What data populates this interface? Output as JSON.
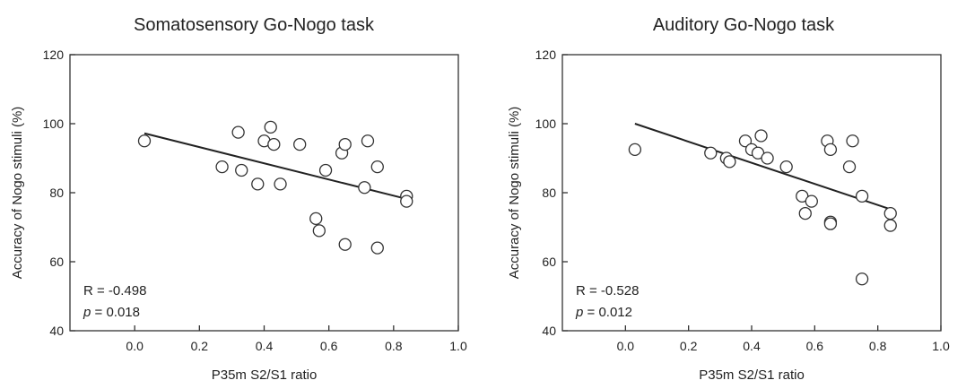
{
  "chart_data": [
    {
      "type": "scatter",
      "title": "Somatosensory Go-Nogo task",
      "xlabel": "P35m S2/S1 ratio",
      "ylabel": "Accuracy of Nogo stimuli (%)",
      "xlim": [
        -0.2,
        1.0
      ],
      "ylim": [
        40,
        120
      ],
      "xticks": [
        "0.0",
        "0.2",
        "0.4",
        "0.6",
        "0.8",
        "1.0"
      ],
      "yticks": [
        "40",
        "60",
        "80",
        "100",
        "120"
      ],
      "stats": {
        "r": "R = -0.498",
        "p_symbol": "p",
        "p_rest": " = 0.018"
      },
      "fit_line": {
        "x": [
          0.03,
          0.84
        ],
        "y": [
          97.2,
          78.2
        ]
      },
      "points": [
        {
          "x": 0.03,
          "y": 95.0
        },
        {
          "x": 0.27,
          "y": 87.5
        },
        {
          "x": 0.32,
          "y": 97.5
        },
        {
          "x": 0.33,
          "y": 86.5
        },
        {
          "x": 0.38,
          "y": 82.5
        },
        {
          "x": 0.4,
          "y": 95.0
        },
        {
          "x": 0.42,
          "y": 99.0
        },
        {
          "x": 0.43,
          "y": 94.0
        },
        {
          "x": 0.45,
          "y": 82.5
        },
        {
          "x": 0.51,
          "y": 94.0
        },
        {
          "x": 0.56,
          "y": 72.5
        },
        {
          "x": 0.57,
          "y": 69.0
        },
        {
          "x": 0.59,
          "y": 86.5
        },
        {
          "x": 0.64,
          "y": 91.5
        },
        {
          "x": 0.65,
          "y": 94.0
        },
        {
          "x": 0.65,
          "y": 65.0
        },
        {
          "x": 0.71,
          "y": 81.5
        },
        {
          "x": 0.72,
          "y": 95.0
        },
        {
          "x": 0.75,
          "y": 87.5
        },
        {
          "x": 0.75,
          "y": 64.0
        },
        {
          "x": 0.84,
          "y": 79.0
        },
        {
          "x": 0.84,
          "y": 77.5
        }
      ]
    },
    {
      "type": "scatter",
      "title": "Auditory Go-Nogo task",
      "xlabel": "P35m S2/S1 ratio",
      "ylabel": "Accuracy of Nogo stimuli (%)",
      "xlim": [
        -0.2,
        1.0
      ],
      "ylim": [
        40,
        120
      ],
      "xticks": [
        "0.0",
        "0.2",
        "0.4",
        "0.6",
        "0.8",
        "1.0"
      ],
      "yticks": [
        "40",
        "60",
        "80",
        "100",
        "120"
      ],
      "stats": {
        "r": "R = -0.528",
        "p_symbol": "p",
        "p_rest": " = 0.012"
      },
      "fit_line": {
        "x": [
          0.03,
          0.84
        ],
        "y": [
          100.0,
          75.2
        ]
      },
      "points": [
        {
          "x": 0.03,
          "y": 92.5
        },
        {
          "x": 0.27,
          "y": 91.5
        },
        {
          "x": 0.32,
          "y": 90.0
        },
        {
          "x": 0.33,
          "y": 89.0
        },
        {
          "x": 0.38,
          "y": 95.0
        },
        {
          "x": 0.4,
          "y": 92.5
        },
        {
          "x": 0.42,
          "y": 91.5
        },
        {
          "x": 0.43,
          "y": 96.5
        },
        {
          "x": 0.45,
          "y": 90.0
        },
        {
          "x": 0.51,
          "y": 87.5
        },
        {
          "x": 0.56,
          "y": 79.0
        },
        {
          "x": 0.57,
          "y": 74.0
        },
        {
          "x": 0.59,
          "y": 77.5
        },
        {
          "x": 0.64,
          "y": 95.0
        },
        {
          "x": 0.65,
          "y": 92.5
        },
        {
          "x": 0.65,
          "y": 71.5
        },
        {
          "x": 0.65,
          "y": 71.0
        },
        {
          "x": 0.71,
          "y": 87.5
        },
        {
          "x": 0.72,
          "y": 95.0
        },
        {
          "x": 0.75,
          "y": 79.0
        },
        {
          "x": 0.75,
          "y": 55.0
        },
        {
          "x": 0.84,
          "y": 74.0
        },
        {
          "x": 0.84,
          "y": 70.5
        }
      ]
    }
  ]
}
